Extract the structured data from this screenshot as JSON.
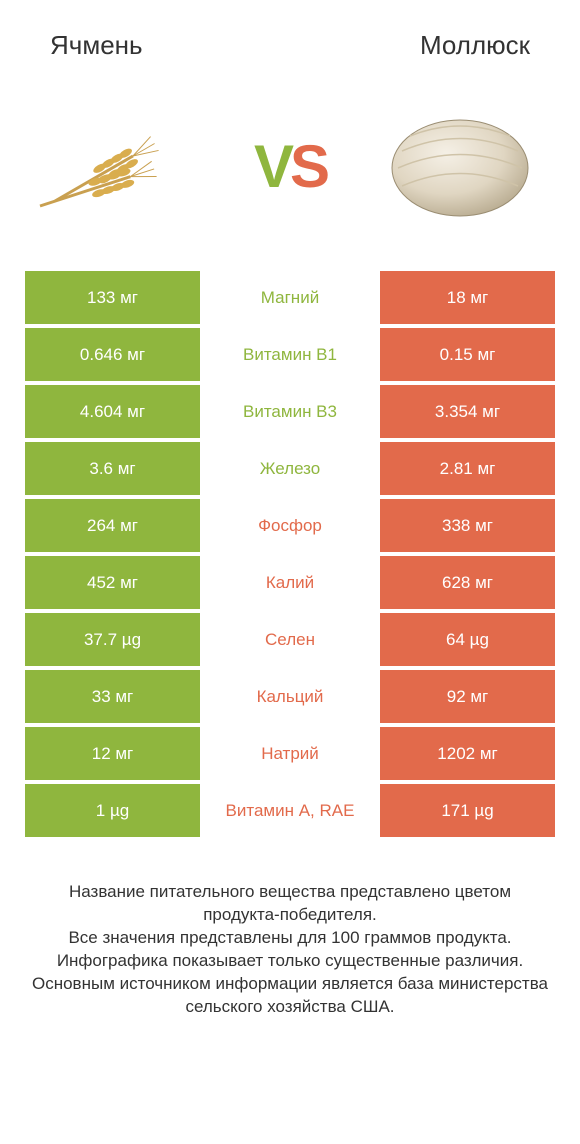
{
  "colors": {
    "left": "#8fb63e",
    "right": "#e26a4b",
    "white": "#ffffff",
    "text": "#333333"
  },
  "header": {
    "left": "Ячмень",
    "right": "Моллюск"
  },
  "vs": {
    "v": "V",
    "s": "S"
  },
  "rows": [
    {
      "left": "133 мг",
      "label": "Магний",
      "right": "18 мг",
      "winner": "left"
    },
    {
      "left": "0.646 мг",
      "label": "Витамин B1",
      "right": "0.15 мг",
      "winner": "left"
    },
    {
      "left": "4.604 мг",
      "label": "Витамин B3",
      "right": "3.354 мг",
      "winner": "left"
    },
    {
      "left": "3.6 мг",
      "label": "Железо",
      "right": "2.81 мг",
      "winner": "left"
    },
    {
      "left": "264 мг",
      "label": "Фосфор",
      "right": "338 мг",
      "winner": "right"
    },
    {
      "left": "452 мг",
      "label": "Калий",
      "right": "628 мг",
      "winner": "right"
    },
    {
      "left": "37.7 µg",
      "label": "Селен",
      "right": "64 µg",
      "winner": "right"
    },
    {
      "left": "33 мг",
      "label": "Кальций",
      "right": "92 мг",
      "winner": "right"
    },
    {
      "left": "12 мг",
      "label": "Натрий",
      "right": "1202 мг",
      "winner": "right"
    },
    {
      "left": "1 µg",
      "label": "Витамин A, RAE",
      "right": "171 µg",
      "winner": "right"
    }
  ],
  "footer": "Название питательного вещества представлено цветом продукта-победителя.\nВсе значения представлены для 100 граммов продукта.\nИнфографика показывает только существенные различия.\nОсновным источником информации является база министерства сельского хозяйства США."
}
